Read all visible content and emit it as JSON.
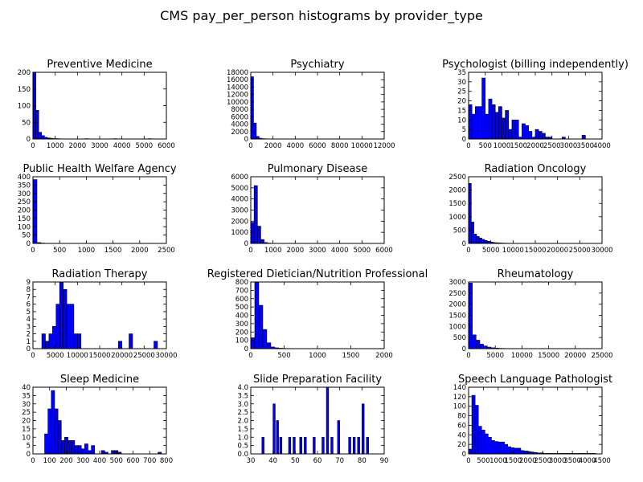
{
  "chart_data": {
    "title": "CMS pay_per_person histograms by provider_type",
    "type": "histogram-grid",
    "panels": [
      {
        "type": "bar",
        "title": "Preventive Medicine",
        "xlim": [
          0,
          6000
        ],
        "ylim": [
          0,
          200
        ],
        "xticks": [
          "0",
          "1000",
          "2000",
          "3000",
          "4000",
          "5000",
          "6000"
        ],
        "yticks": [
          "0",
          "50",
          "100",
          "150",
          "200"
        ],
        "x": [
          0,
          130,
          260,
          390,
          520,
          650,
          780,
          910,
          1040,
          2340,
          3640,
          5200
        ],
        "bin_width": 130,
        "values": [
          200,
          86,
          20,
          10,
          5,
          3,
          2,
          1,
          1,
          1,
          1,
          1
        ]
      },
      {
        "type": "bar",
        "title": "Psychiatry",
        "xlim": [
          0,
          12000
        ],
        "ylim": [
          0,
          18000
        ],
        "xticks": [
          "0",
          "2000",
          "4000",
          "6000",
          "8000",
          "10000",
          "12000"
        ],
        "yticks": [
          "0",
          "2000",
          "4000",
          "6000",
          "8000",
          "10000",
          "12000",
          "14000",
          "16000",
          "18000"
        ],
        "x": [
          0,
          250,
          500,
          750,
          1000,
          1250,
          1500,
          1750,
          2000
        ],
        "bin_width": 250,
        "values": [
          16800,
          4300,
          700,
          200,
          100,
          50,
          30,
          20,
          10
        ]
      },
      {
        "type": "bar",
        "title": "Psychologist (billing independently)",
        "xlim": [
          0,
          4000
        ],
        "ylim": [
          0,
          35
        ],
        "xticks": [
          "0",
          "500",
          "1000",
          "1500",
          "2000",
          "2500",
          "3000",
          "3500",
          "4000"
        ],
        "yticks": [
          "0",
          "5",
          "10",
          "15",
          "20",
          "25",
          "30",
          "35"
        ],
        "x": [
          0,
          100,
          200,
          300,
          400,
          500,
          600,
          700,
          800,
          900,
          1000,
          1100,
          1200,
          1300,
          1400,
          1500,
          1600,
          1700,
          1800,
          1900,
          2000,
          2100,
          2200,
          2300,
          2400,
          2500,
          2600,
          2700,
          2800,
          2900,
          3000,
          3100,
          3200,
          3300,
          3400
        ],
        "bin_width": 100,
        "values": [
          18,
          13,
          17,
          17,
          32,
          13,
          21,
          18,
          14,
          17,
          11,
          15,
          5,
          10,
          10,
          1,
          8,
          7,
          4,
          1,
          5,
          4,
          3,
          1,
          1,
          0,
          0,
          0,
          1,
          0,
          0,
          0,
          0,
          0,
          2
        ]
      },
      {
        "type": "bar",
        "title": "Public Health Welfare Agency",
        "xlim": [
          0,
          2500
        ],
        "ylim": [
          0,
          400
        ],
        "xticks": [
          "0",
          "500",
          "1000",
          "1500",
          "2000",
          "2500"
        ],
        "yticks": [
          "0",
          "50",
          "100",
          "150",
          "200",
          "250",
          "300",
          "350",
          "400"
        ],
        "x": [
          0,
          75,
          150,
          225,
          300,
          2200
        ],
        "bin_width": 75,
        "values": [
          383,
          5,
          2,
          1,
          1,
          1
        ]
      },
      {
        "type": "bar",
        "title": "Pulmonary Disease",
        "xlim": [
          0,
          6000
        ],
        "ylim": [
          0,
          6000
        ],
        "xticks": [
          "0",
          "1000",
          "2000",
          "3000",
          "4000",
          "5000",
          "6000"
        ],
        "yticks": [
          "0",
          "1000",
          "2000",
          "3000",
          "4000",
          "5000",
          "6000"
        ],
        "x": [
          0,
          150,
          300,
          450,
          600,
          750,
          900,
          1050,
          1200,
          1350
        ],
        "bin_width": 150,
        "values": [
          1900,
          5200,
          1550,
          350,
          80,
          30,
          15,
          10,
          5,
          3
        ]
      },
      {
        "type": "bar",
        "title": "Radiation Oncology",
        "xlim": [
          0,
          30000
        ],
        "ylim": [
          0,
          2500
        ],
        "xticks": [
          "0",
          "5000",
          "10000",
          "15000",
          "20000",
          "25000",
          "30000"
        ],
        "yticks": [
          "0",
          "500",
          "1000",
          "1500",
          "2000",
          "2500"
        ],
        "x": [
          0,
          600,
          1200,
          1800,
          2400,
          3000,
          3600,
          4200,
          4800,
          5400,
          6000,
          6600,
          7200,
          7800,
          8400,
          9000,
          9600,
          10200,
          10800,
          11400,
          12000
        ],
        "bin_width": 600,
        "values": [
          2250,
          800,
          350,
          260,
          200,
          150,
          110,
          80,
          50,
          35,
          25,
          20,
          15,
          10,
          8,
          6,
          5,
          4,
          3,
          2,
          2
        ]
      },
      {
        "type": "bar",
        "title": "Radiation Therapy",
        "xlim": [
          0,
          30000
        ],
        "ylim": [
          0,
          9
        ],
        "xticks": [
          "0",
          "5000",
          "10000",
          "15000",
          "20000",
          "25000",
          "30000"
        ],
        "yticks": [
          "0",
          "1",
          "2",
          "3",
          "4",
          "5",
          "6",
          "7",
          "8",
          "9"
        ],
        "x": [
          2000,
          2800,
          3600,
          4400,
          5200,
          6000,
          6800,
          7600,
          8400,
          9200,
          10000,
          19200,
          21600,
          27200
        ],
        "bin_width": 800,
        "values": [
          2,
          1,
          2,
          3,
          6,
          9,
          8,
          6,
          6,
          2,
          2,
          1,
          2,
          1
        ]
      },
      {
        "type": "bar",
        "title": "Registered Dietician/Nutrition Professional",
        "xlim": [
          0,
          2000
        ],
        "ylim": [
          0,
          800
        ],
        "xticks": [
          "0",
          "500",
          "1000",
          "1500",
          "2000"
        ],
        "yticks": [
          "0",
          "100",
          "200",
          "300",
          "400",
          "500",
          "600",
          "700",
          "800"
        ],
        "x": [
          0,
          60,
          120,
          180,
          240,
          300,
          360,
          420,
          480,
          540,
          600
        ],
        "bin_width": 60,
        "values": [
          130,
          800,
          520,
          230,
          70,
          20,
          10,
          5,
          3,
          2,
          1
        ]
      },
      {
        "type": "bar",
        "title": "Rheumatology",
        "xlim": [
          0,
          25000
        ],
        "ylim": [
          0,
          3000
        ],
        "xticks": [
          "0",
          "5000",
          "10000",
          "15000",
          "20000",
          "25000"
        ],
        "yticks": [
          "0",
          "500",
          "1000",
          "1500",
          "2000",
          "2500",
          "3000"
        ],
        "x": [
          0,
          700,
          1400,
          2100,
          2800,
          3500,
          4200,
          4900,
          5600,
          6300,
          7000,
          7700
        ],
        "bin_width": 700,
        "values": [
          2950,
          620,
          380,
          200,
          120,
          70,
          40,
          25,
          15,
          10,
          6,
          4
        ]
      },
      {
        "type": "bar",
        "title": "Sleep Medicine",
        "xlim": [
          0,
          800
        ],
        "ylim": [
          0,
          40
        ],
        "xticks": [
          "0",
          "100",
          "200",
          "300",
          "400",
          "500",
          "600",
          "700",
          "800"
        ],
        "yticks": [
          "0",
          "5",
          "10",
          "15",
          "20",
          "25",
          "30",
          "35",
          "40"
        ],
        "x": [
          70,
          90,
          110,
          130,
          150,
          170,
          190,
          210,
          230,
          250,
          270,
          290,
          310,
          330,
          350,
          370,
          390,
          410,
          430,
          450,
          470,
          490,
          510,
          530,
          550,
          570,
          590,
          610,
          630,
          650,
          670,
          690,
          710,
          730,
          750
        ],
        "bin_width": 20,
        "values": [
          12,
          27,
          38,
          27,
          20,
          8,
          10,
          8,
          8,
          5,
          5,
          3,
          6,
          2,
          5,
          0,
          0,
          2,
          1,
          0,
          2,
          2,
          1,
          0,
          0,
          0,
          0,
          0,
          0,
          0,
          0,
          0,
          0,
          0,
          1
        ]
      },
      {
        "type": "bar",
        "title": "Slide Preparation Facility",
        "xlim": [
          30,
          90
        ],
        "ylim": [
          0,
          4.0
        ],
        "xticks": [
          "30",
          "40",
          "50",
          "60",
          "70",
          "80",
          "90"
        ],
        "yticks": [
          "0.0",
          "0.5",
          "1.0",
          "1.5",
          "2.0",
          "2.5",
          "3.0",
          "3.5",
          "4.0"
        ],
        "x": [
          35,
          40,
          41.5,
          43,
          47,
          49,
          52,
          54,
          58,
          62,
          64,
          66,
          69,
          74,
          76,
          78,
          80,
          82
        ],
        "bin_width": 1.0,
        "values": [
          1,
          3,
          2,
          1,
          1,
          1,
          1,
          1,
          1,
          1,
          4,
          1,
          2,
          1,
          1,
          1,
          3,
          1
        ]
      },
      {
        "type": "bar",
        "title": "Speech Language Pathologist",
        "xlim": [
          0,
          4500
        ],
        "ylim": [
          0,
          140
        ],
        "xticks": [
          "0",
          "500",
          "1000",
          "1500",
          "2000",
          "2500",
          "3000",
          "3500",
          "4000",
          "4500"
        ],
        "yticks": [
          "0",
          "20",
          "40",
          "60",
          "80",
          "100",
          "120",
          "140"
        ],
        "x": [
          0,
          110,
          220,
          330,
          440,
          550,
          660,
          770,
          880,
          990,
          1100,
          1210,
          1320,
          1430,
          1540,
          1650,
          1760,
          1870,
          1980,
          2090,
          2200,
          2310,
          2420,
          2530,
          2640,
          2750,
          2860,
          2970,
          3080,
          3190,
          3300,
          3410,
          3520,
          3630,
          3740,
          3850,
          3960,
          4070,
          4180
        ],
        "bin_width": 110,
        "values": [
          10,
          123,
          102,
          58,
          50,
          42,
          35,
          28,
          26,
          25,
          25,
          20,
          15,
          13,
          12,
          12,
          7,
          6,
          5,
          4,
          3,
          2,
          2,
          1,
          1,
          1,
          1,
          1,
          1,
          1,
          1,
          1,
          1,
          1,
          1,
          1,
          1,
          1,
          1
        ]
      }
    ]
  }
}
